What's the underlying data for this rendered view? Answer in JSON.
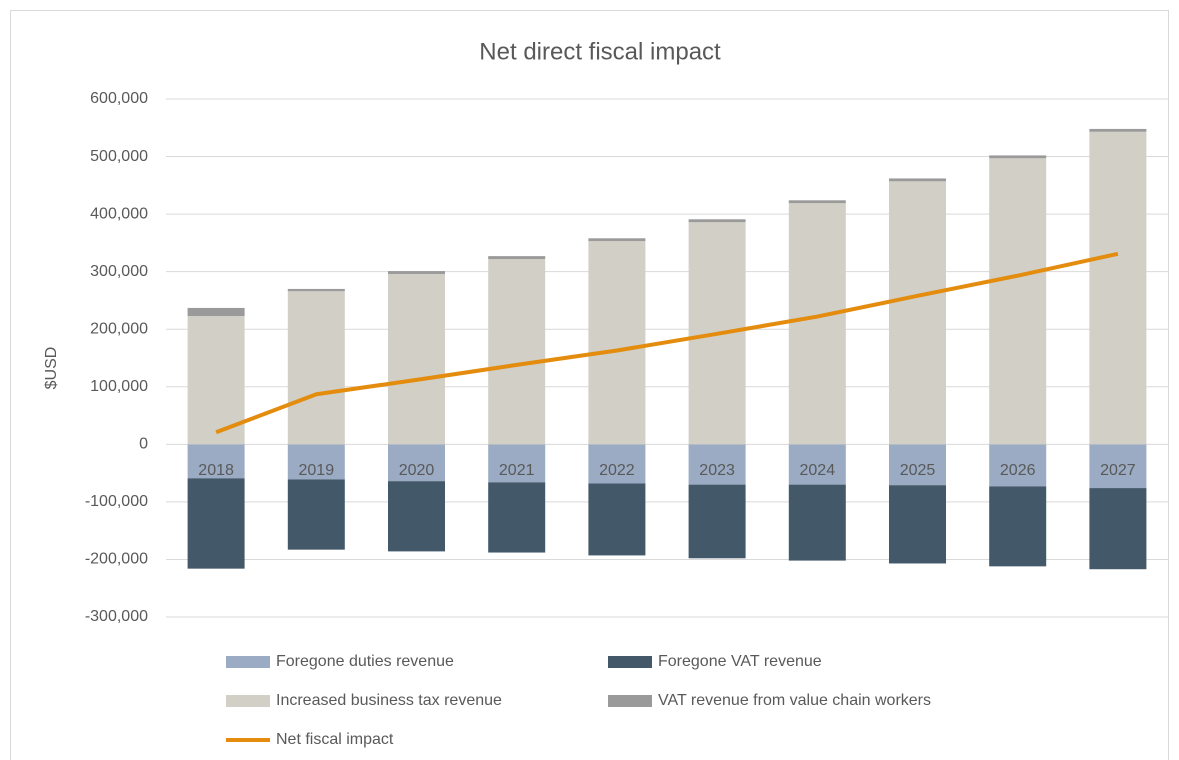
{
  "chart_data": {
    "type": "bar",
    "stacked": true,
    "title": "Net direct fiscal impact",
    "y_label": "$USD",
    "categories": [
      "2018",
      "2019",
      "2020",
      "2021",
      "2022",
      "2023",
      "2024",
      "2025",
      "2026",
      "2027"
    ],
    "series": [
      {
        "name": "Foregone duties revenue",
        "color": "#9aabc3",
        "values": [
          -59000,
          -61000,
          -64000,
          -66000,
          -68000,
          -70000,
          -70000,
          -71000,
          -73000,
          -76000
        ]
      },
      {
        "name": "Foregone VAT revenue",
        "color": "#43596a",
        "values": [
          -157000,
          -122000,
          -122000,
          -122000,
          -125000,
          -128000,
          -132000,
          -136000,
          -139000,
          -141000
        ]
      },
      {
        "name": "Increased business tax revenue",
        "color": "#d2cfc6",
        "values": [
          223000,
          266000,
          296000,
          322000,
          353000,
          386000,
          419000,
          457000,
          497000,
          543000
        ]
      },
      {
        "name": "VAT revenue from value chain workers",
        "color": "#999a99",
        "values": [
          14000,
          4000,
          5000,
          5000,
          5000,
          5000,
          5000,
          5000,
          5000,
          5000
        ]
      },
      {
        "name": "Net fiscal impact",
        "type": "line",
        "color": "#e38c0e",
        "values": [
          21000,
          87000,
          112000,
          138000,
          163000,
          192000,
          222000,
          258000,
          293000,
          331000
        ]
      }
    ],
    "ylim": [
      -300000,
      600000
    ],
    "yticks": [
      {
        "value": -300000,
        "label": "-300,000"
      },
      {
        "value": -200000,
        "label": "-200,000"
      },
      {
        "value": -100000,
        "label": "-100,000"
      },
      0,
      {
        "value": 100000,
        "label": "100,000"
      },
      {
        "value": 200000,
        "label": "200,000"
      },
      {
        "value": 300000,
        "label": "300,000"
      },
      {
        "value": 400000,
        "label": "400,000"
      },
      {
        "value": 500000,
        "label": "500,000"
      },
      {
        "value": 600000,
        "label": "600,000"
      }
    ],
    "grid": true
  }
}
